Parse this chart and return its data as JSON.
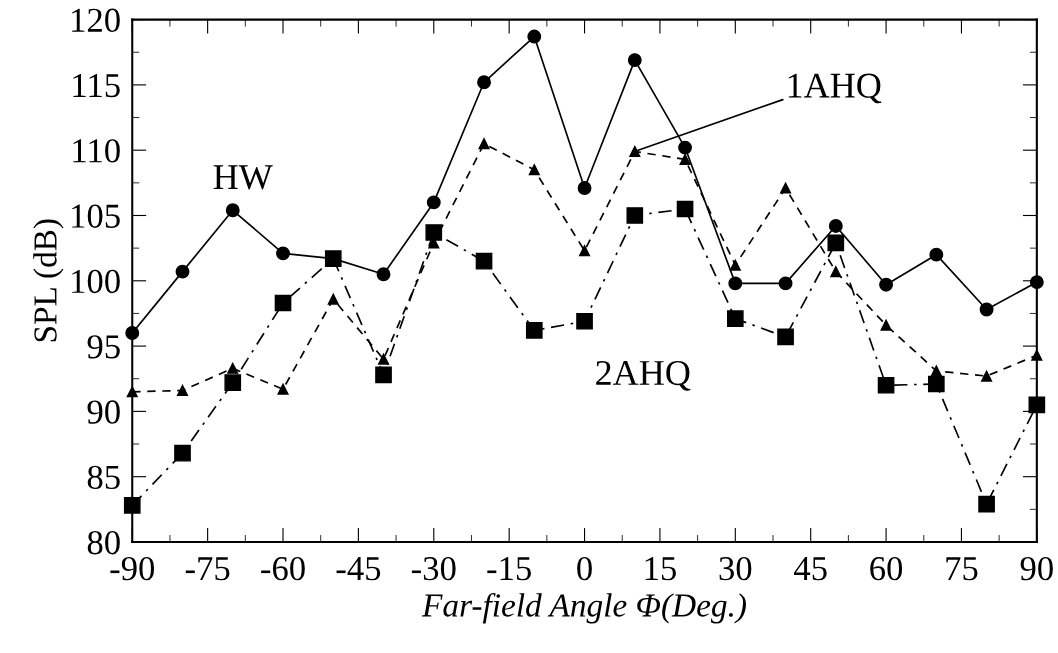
{
  "chart_data": {
    "type": "line",
    "xlabel": "Far-field Angle Φ(Deg.)",
    "ylabel": "SPL (dB)",
    "x": [
      -90,
      -80,
      -70,
      -60,
      -50,
      -40,
      -30,
      -20,
      -10,
      0,
      10,
      20,
      30,
      40,
      50,
      60,
      70,
      80,
      90
    ],
    "series": [
      {
        "name": "HW",
        "color": "#000000",
        "marker": "circle",
        "line_style": "solid",
        "values": [
          96.0,
          100.7,
          105.4,
          102.1,
          101.7,
          100.5,
          106.0,
          115.2,
          118.7,
          107.1,
          116.9,
          110.2,
          99.8,
          99.8,
          104.2,
          99.7,
          102.0,
          97.8,
          99.9
        ]
      },
      {
        "color": "#000000",
        "marker": "triangle",
        "line_style": "dashed",
        "values": [
          91.5,
          91.6,
          93.3,
          91.7,
          98.6,
          94.0,
          102.9,
          110.5,
          108.5,
          102.3,
          109.9,
          109.3,
          101.2,
          107.1,
          100.7,
          96.6,
          93.1,
          92.7,
          94.3
        ]
      },
      {
        "name": "2AHQ",
        "color": "#000000",
        "marker": "square",
        "line_style": "dashdot",
        "values": [
          82.8,
          86.8,
          92.2,
          98.3,
          101.7,
          92.8,
          103.7,
          101.5,
          96.2,
          96.9,
          105.0,
          105.5,
          97.1,
          95.7,
          102.9,
          92.0,
          92.1,
          82.9,
          90.5
        ]
      }
    ],
    "xlim": [
      -90,
      90
    ],
    "xticks": [
      -90,
      -75,
      -60,
      -45,
      -30,
      -15,
      0,
      15,
      30,
      45,
      60,
      75,
      90
    ],
    "ylim": [
      80,
      120
    ],
    "yticks": [
      80,
      85,
      90,
      95,
      100,
      105,
      110,
      115,
      120
    ],
    "annotations": [
      {
        "text": "1AHQ",
        "x": 10,
        "y": 109.9
      }
    ],
    "grid": false,
    "legend": false
  }
}
